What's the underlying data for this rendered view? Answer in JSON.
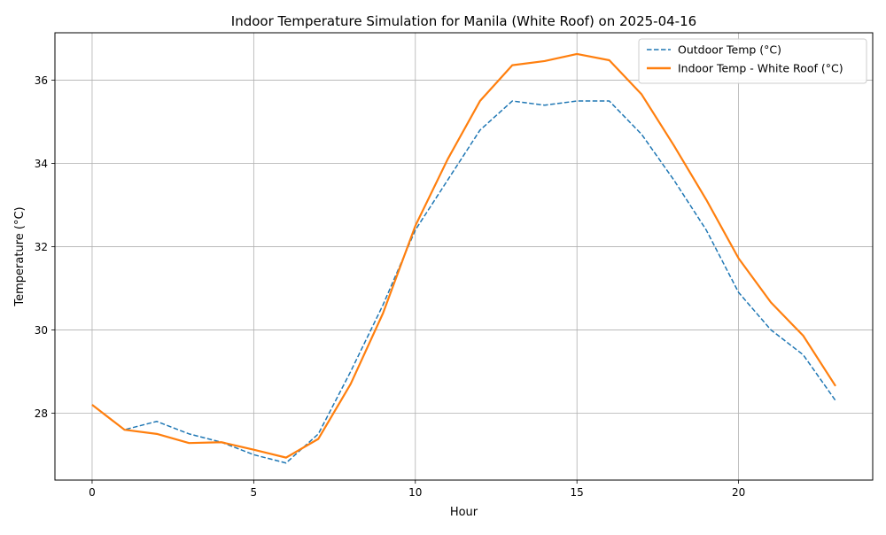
{
  "chart_data": {
    "type": "line",
    "title": "Indoor Temperature Simulation for Manila (White Roof) on 2025-04-16",
    "xlabel": "Hour",
    "ylabel": "Temperature (°C)",
    "xlim": [
      -1.15,
      24.15
    ],
    "ylim": [
      26.39,
      37.14
    ],
    "x_ticks": [
      0,
      5,
      10,
      15,
      20
    ],
    "y_ticks": [
      28,
      30,
      32,
      34,
      36
    ],
    "grid": true,
    "legend_position": "top-right",
    "x": [
      0,
      1,
      2,
      3,
      4,
      5,
      6,
      7,
      8,
      9,
      10,
      11,
      12,
      13,
      14,
      15,
      16,
      17,
      18,
      19,
      20,
      21,
      22,
      23
    ],
    "series": [
      {
        "name": "Outdoor Temp (°C)",
        "color": "#1f77b4",
        "style": "dashed",
        "values": [
          28.2,
          27.6,
          27.8,
          27.5,
          27.3,
          27.0,
          26.8,
          27.5,
          29.0,
          30.6,
          32.4,
          33.6,
          34.8,
          35.5,
          35.4,
          35.5,
          35.5,
          34.7,
          33.6,
          32.4,
          30.9,
          30.0,
          29.4,
          28.3
        ]
      },
      {
        "name": "Indoor Temp - White Roof (°C)",
        "color": "#ff7f0e",
        "style": "solid",
        "values": [
          28.2,
          27.6,
          27.5,
          27.28,
          27.3,
          27.12,
          26.93,
          27.38,
          28.7,
          30.4,
          32.5,
          34.1,
          35.5,
          36.36,
          36.46,
          36.63,
          36.48,
          35.66,
          34.43,
          33.13,
          31.72,
          30.66,
          29.86,
          28.65
        ]
      }
    ]
  }
}
